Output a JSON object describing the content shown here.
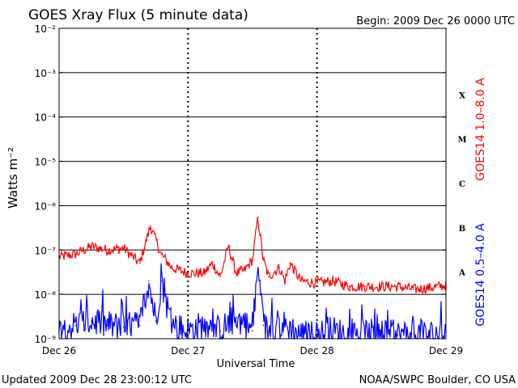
{
  "title": "GOES Xray Flux (5 minute data)",
  "begin_label": "Begin:  2009 Dec 26 0000 UTC",
  "updated_label": "Updated 2009 Dec 28 23:00:12 UTC",
  "credit_label": "NOAA/SWPC Boulder, CO USA",
  "colors": {
    "long_channel": "#ff0000",
    "short_channel": "#0000ff",
    "axis": "#000000"
  },
  "chart_data": {
    "type": "line",
    "xlabel": "Universal Time",
    "ylabel": "Watts m⁻²",
    "x_ticks": [
      "Dec 26",
      "Dec 27",
      "Dec 28",
      "Dec 29"
    ],
    "xlim": [
      "2009-12-26 00:00",
      "2009-12-29 00:00"
    ],
    "y_scale": "log",
    "ylim": [
      1e-09,
      0.01
    ],
    "y_ticks": [
      "10⁻²",
      "10⁻³",
      "10⁻⁴",
      "10⁻⁵",
      "10⁻⁶",
      "10⁻⁷",
      "10⁻⁸",
      "10⁻⁹"
    ],
    "flare_classes": [
      "X",
      "M",
      "C",
      "B",
      "A"
    ],
    "grid": true,
    "series": [
      {
        "name": "GOES14 1.0–8.0 A",
        "x": [
          "2009-12-26 00:00",
          "2009-12-26 03:00",
          "2009-12-26 06:00",
          "2009-12-26 09:00",
          "2009-12-26 12:00",
          "2009-12-26 15:00",
          "2009-12-26 17:00",
          "2009-12-26 19:00",
          "2009-12-26 21:00",
          "2009-12-27 00:00",
          "2009-12-27 03:00",
          "2009-12-27 04:30",
          "2009-12-27 06:00",
          "2009-12-27 07:30",
          "2009-12-27 09:00",
          "2009-12-27 10:30",
          "2009-12-27 12:00",
          "2009-12-27 13:00",
          "2009-12-27 14:00",
          "2009-12-27 15:00",
          "2009-12-27 17:00",
          "2009-12-27 18:00",
          "2009-12-27 19:00",
          "2009-12-27 21:00",
          "2009-12-28 00:00",
          "2009-12-28 03:00",
          "2009-12-28 06:00",
          "2009-12-28 09:00",
          "2009-12-28 12:00",
          "2009-12-28 15:00",
          "2009-12-28 18:00",
          "2009-12-28 21:00",
          "2009-12-29 00:00"
        ],
        "values": [
          7e-08,
          8e-08,
          1.2e-07,
          1e-07,
          1.1e-07,
          5e-08,
          3.5e-07,
          8e-08,
          4e-08,
          3e-08,
          3e-08,
          5e-08,
          2.5e-08,
          1.2e-07,
          3e-08,
          3.5e-08,
          6e-08,
          5.5e-07,
          6e-08,
          2.5e-08,
          4e-08,
          2e-08,
          5e-08,
          2e-08,
          1.8e-08,
          2e-08,
          1.5e-08,
          1.5e-08,
          1.5e-08,
          1.5e-08,
          1.3e-08,
          1.4e-08,
          1.6e-08
        ]
      },
      {
        "name": "GOES14 0.5–4.0 A",
        "x": [
          "2009-12-26 00:00",
          "2009-12-26 03:00",
          "2009-12-26 06:00",
          "2009-12-26 09:00",
          "2009-12-26 12:00",
          "2009-12-26 15:00",
          "2009-12-26 16:40",
          "2009-12-26 18:00",
          "2009-12-26 19:00",
          "2009-12-26 21:00",
          "2009-12-27 00:00",
          "2009-12-27 03:00",
          "2009-12-27 06:00",
          "2009-12-27 09:00",
          "2009-12-27 12:00",
          "2009-12-27 13:00",
          "2009-12-27 14:00",
          "2009-12-27 15:00",
          "2009-12-27 18:00",
          "2009-12-27 21:00",
          "2009-12-28 00:00",
          "2009-12-28 03:00",
          "2009-12-28 06:00",
          "2009-12-28 09:00",
          "2009-12-28 12:00",
          "2009-12-28 15:00",
          "2009-12-28 18:00",
          "2009-12-28 21:00",
          "2009-12-29 00:00"
        ],
        "values": [
          1.5e-09,
          2e-09,
          2.5e-09,
          2e-09,
          1.8e-09,
          2e-09,
          2e-08,
          2.5e-09,
          2e-08,
          2e-09,
          1.5e-09,
          2e-09,
          1.5e-09,
          3e-09,
          1.5e-09,
          4e-08,
          2e-09,
          1.5e-09,
          2e-09,
          1.2e-09,
          1.2e-09,
          1.5e-09,
          1.2e-09,
          1.3e-09,
          1.2e-09,
          1.2e-09,
          1.3e-09,
          1.2e-09,
          1.4e-09
        ]
      }
    ]
  }
}
